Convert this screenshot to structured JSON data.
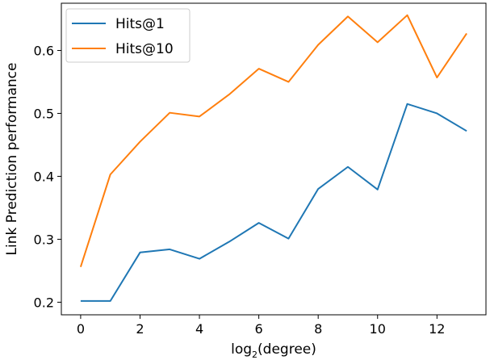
{
  "chart_data": {
    "type": "line",
    "title": "",
    "xlabel": "log",
    "xlabel_sub": "2",
    "xlabel_suffix": "(degree)",
    "ylabel": "Link Prediction performance",
    "xlim": [
      -0.65,
      13.65
    ],
    "ylim": [
      0.18,
      0.675
    ],
    "xticks": [
      0,
      2,
      4,
      6,
      8,
      10,
      12
    ],
    "yticks": [
      0.2,
      0.3,
      0.4,
      0.5,
      0.6
    ],
    "ytick_labels": [
      "0.2",
      "0.3",
      "0.4",
      "0.5",
      "0.6"
    ],
    "grid": false,
    "legend_position": "upper-left",
    "x": [
      0,
      1,
      2,
      3,
      4,
      5,
      6,
      7,
      8,
      9,
      10,
      11,
      12,
      13
    ],
    "series": [
      {
        "name": "Hits@1",
        "color": "#1f77b4",
        "values": [
          0.202,
          0.202,
          0.279,
          0.284,
          0.269,
          0.296,
          0.326,
          0.301,
          0.38,
          0.415,
          0.379,
          0.515,
          0.5,
          0.472
        ]
      },
      {
        "name": "Hits@10",
        "color": "#ff7f0e",
        "values": [
          0.256,
          0.403,
          0.455,
          0.501,
          0.495,
          0.53,
          0.571,
          0.55,
          0.609,
          0.654,
          0.613,
          0.656,
          0.557,
          0.627
        ]
      }
    ]
  }
}
